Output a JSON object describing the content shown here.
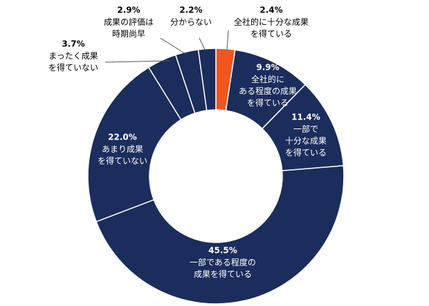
{
  "chart_data": {
    "type": "donut",
    "categories": [
      "全社的に十分な成果\nを得ている",
      "全社的に\nある程度の成果\nを得ている",
      "一部で\n十分な成果\nを得ている",
      "一部である程度の\n成果を得ている",
      "あまり成果\nを得ていない",
      "まったく成果\nを得ていない",
      "成果の評価は\n時期尚早",
      "分からない"
    ],
    "values": [
      2.4,
      9.9,
      11.4,
      45.5,
      22.0,
      3.7,
      2.9,
      2.2
    ],
    "value_labels": [
      "2.4%",
      "9.9%",
      "11.4%",
      "45.5%",
      "22.0%",
      "3.7%",
      "2.9%",
      "2.2%"
    ],
    "colors": [
      "#f0561d",
      "#1b2d5c",
      "#1b2d5c",
      "#1b2d5c",
      "#1b2d5c",
      "#1b2d5c",
      "#1b2d5c",
      "#1b2d5c"
    ]
  }
}
